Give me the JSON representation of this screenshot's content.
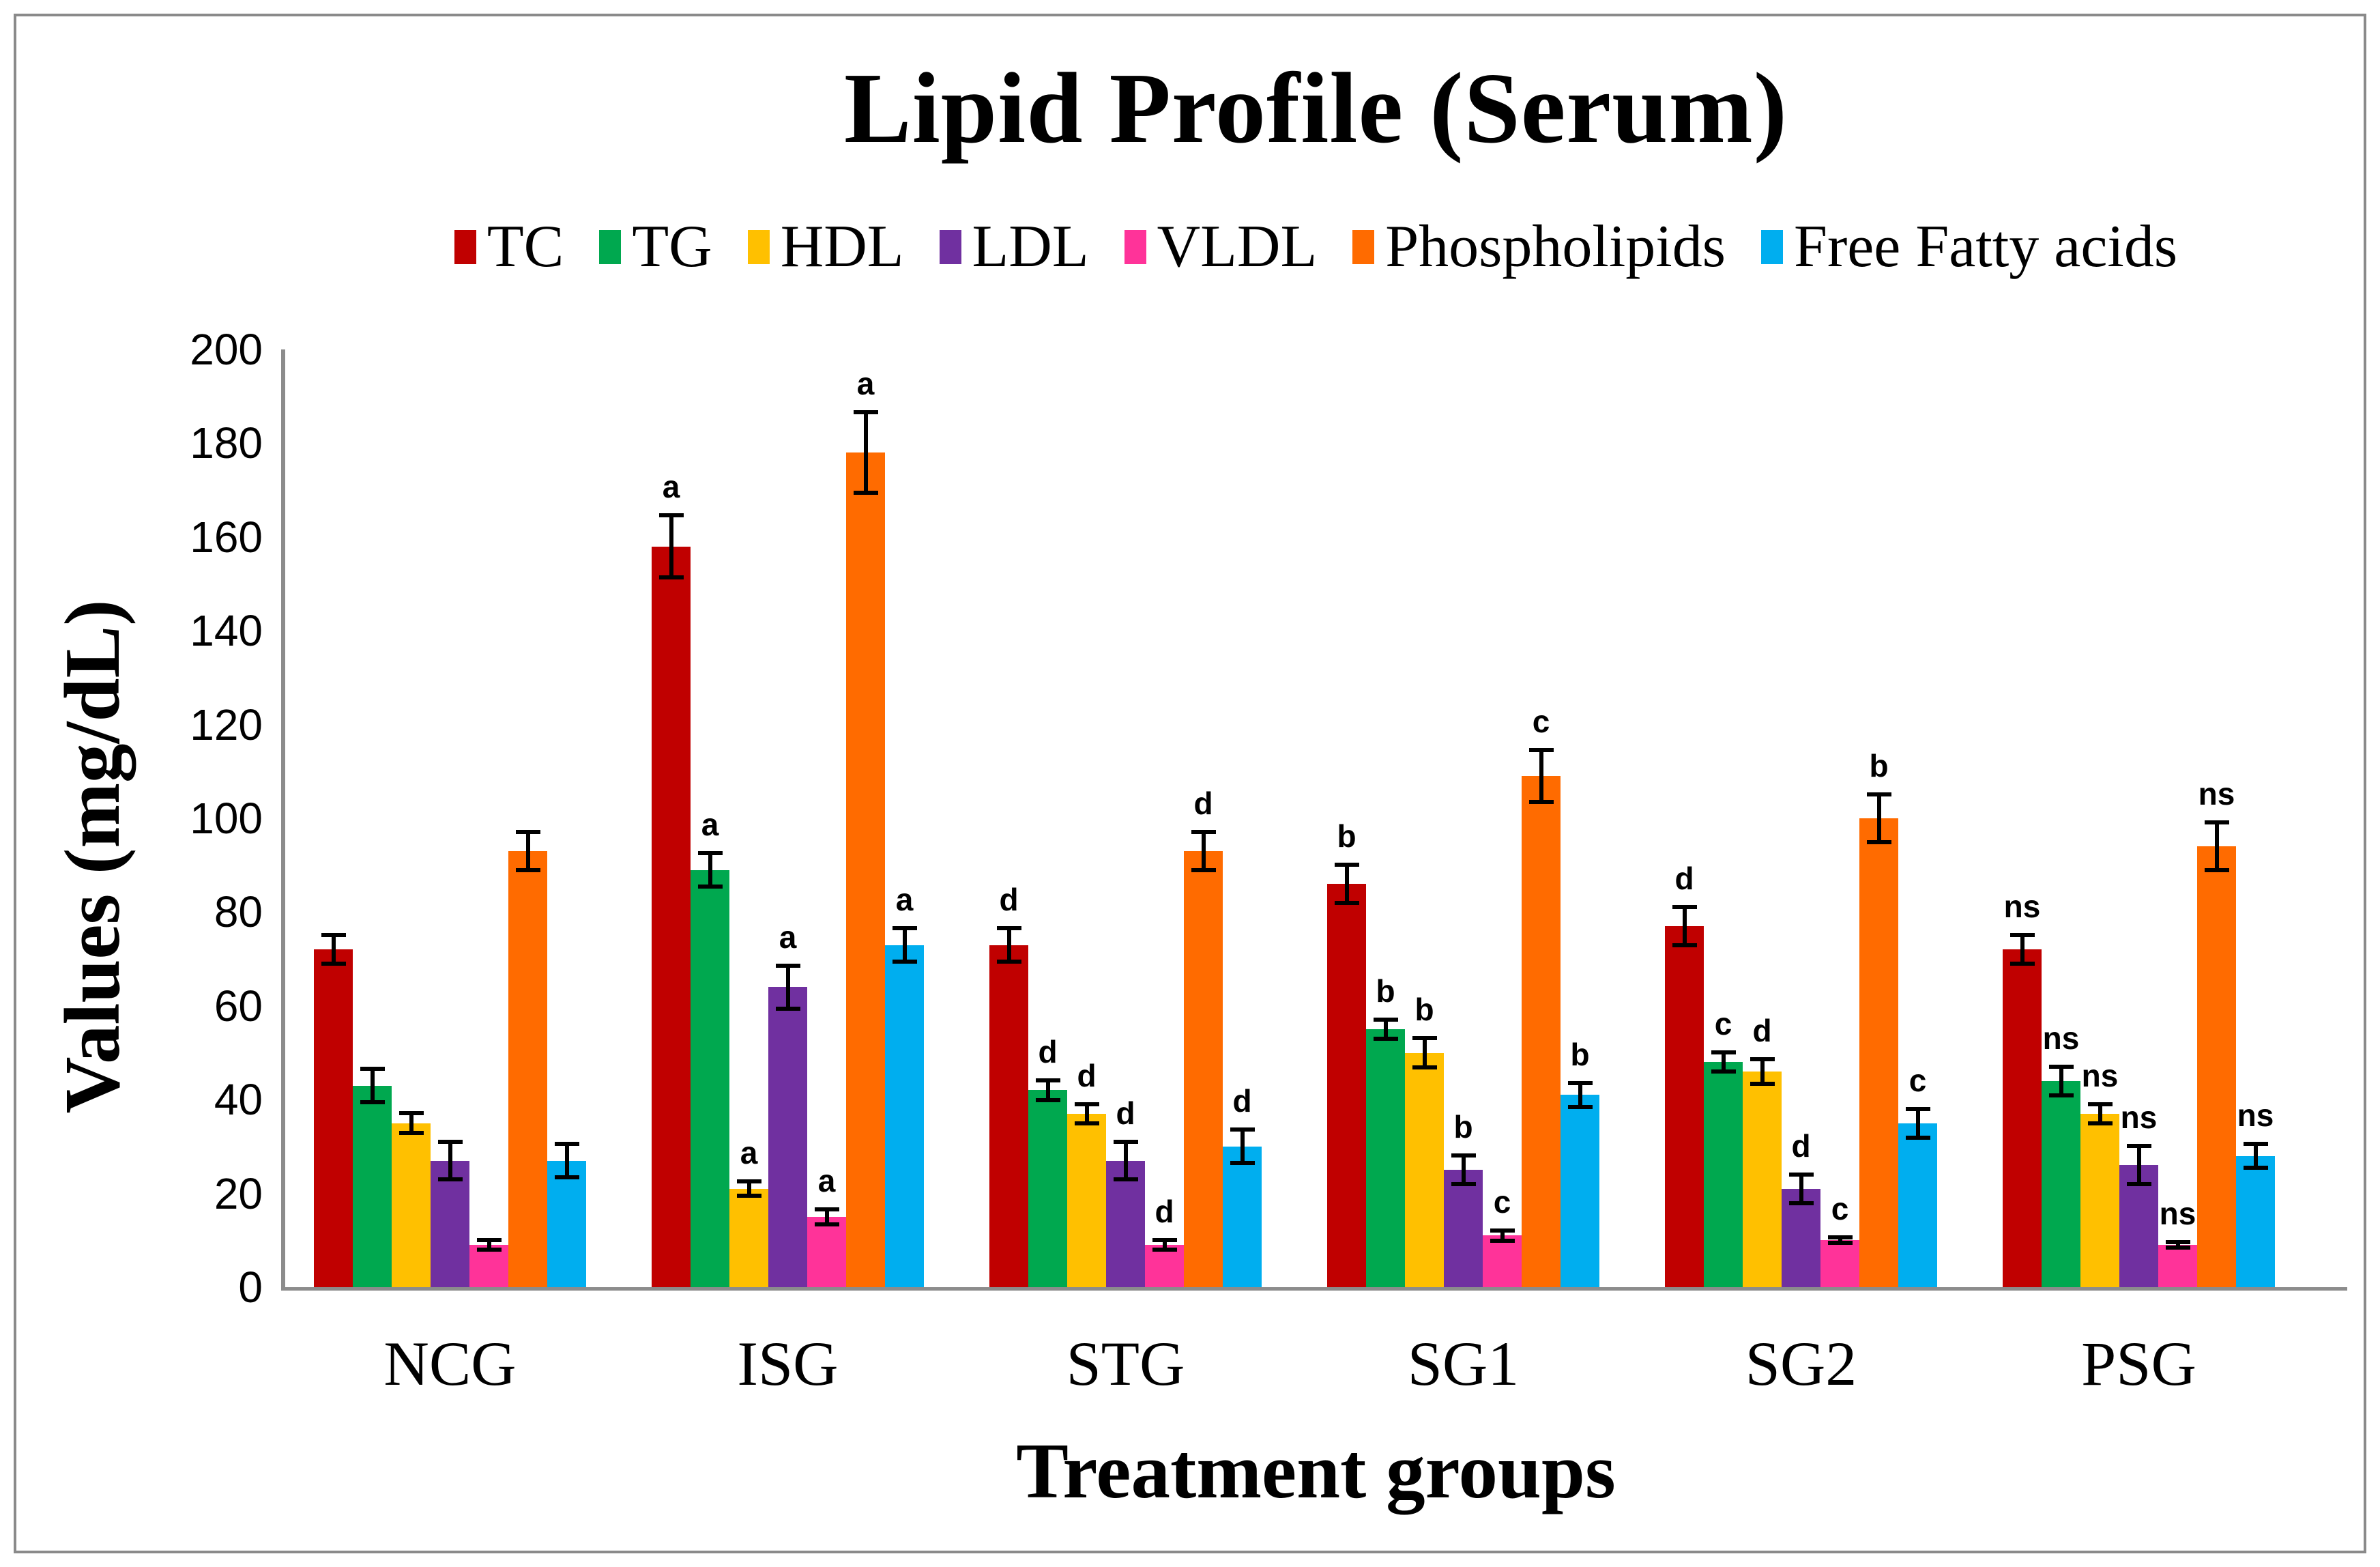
{
  "figure": {
    "frame_color": "#8a8a8a",
    "axis_color": "#8c8c8c",
    "error_bar_color": "#000000",
    "background": "#ffffff"
  },
  "chart_data": {
    "type": "bar",
    "title": "Lipid Profile (Serum)",
    "xlabel": "Treatment groups",
    "ylabel": "Values (mg/dL)",
    "ylim": [
      0,
      200
    ],
    "ytick_step": 20,
    "grid": false,
    "legend_position": "top",
    "categories": [
      "NCG",
      "ISG",
      "STG",
      "SG1",
      "SG2",
      "PSG"
    ],
    "series": [
      {
        "name": "TC",
        "color": "#C00000",
        "values": [
          72,
          158,
          73,
          86,
          77,
          72
        ],
        "errors": [
          3.5,
          7,
          4,
          4.5,
          4.5,
          3.5
        ],
        "sig": [
          "",
          "a",
          "d",
          "b",
          "d",
          "ns"
        ]
      },
      {
        "name": "TG",
        "color": "#00A84F",
        "values": [
          43,
          89,
          42,
          55,
          48,
          44
        ],
        "errors": [
          4,
          4,
          2.5,
          2.5,
          2.5,
          3.5
        ],
        "sig": [
          "",
          "a",
          "d",
          "b",
          "c",
          "ns"
        ]
      },
      {
        "name": "HDL",
        "color": "#FFC000",
        "values": [
          35,
          21,
          37,
          50,
          46,
          37
        ],
        "errors": [
          2.5,
          2,
          2.5,
          3.5,
          3,
          2.5
        ],
        "sig": [
          "",
          "a",
          "d",
          "b",
          "d",
          "ns"
        ]
      },
      {
        "name": "LDL",
        "color": "#7030A0",
        "values": [
          27,
          64,
          27,
          25,
          21,
          26
        ],
        "errors": [
          4.5,
          5,
          4.5,
          3.5,
          3.5,
          4.5
        ],
        "sig": [
          "",
          "a",
          "d",
          "b",
          "d",
          "ns"
        ]
      },
      {
        "name": "VLDL",
        "color": "#FF3399",
        "values": [
          9,
          15,
          9,
          11,
          10,
          9
        ],
        "errors": [
          1.5,
          2,
          1.5,
          1.5,
          1,
          1
        ],
        "sig": [
          "",
          "a",
          "d",
          "c",
          "c",
          "ns"
        ]
      },
      {
        "name": "Phospholipids",
        "color": "#FF6B00",
        "values": [
          93,
          178,
          93,
          109,
          100,
          94
        ],
        "errors": [
          4.5,
          9,
          4.5,
          6,
          5.5,
          5.5
        ],
        "sig": [
          "",
          "a",
          "d",
          "c",
          "b",
          "ns"
        ]
      },
      {
        "name": "Free Fatty acids",
        "color": "#00AEEF",
        "values": [
          27,
          73,
          30,
          41,
          35,
          28
        ],
        "errors": [
          4,
          4,
          4,
          3,
          3.5,
          3
        ],
        "sig": [
          "",
          "a",
          "d",
          "b",
          "c",
          "ns"
        ]
      }
    ]
  }
}
